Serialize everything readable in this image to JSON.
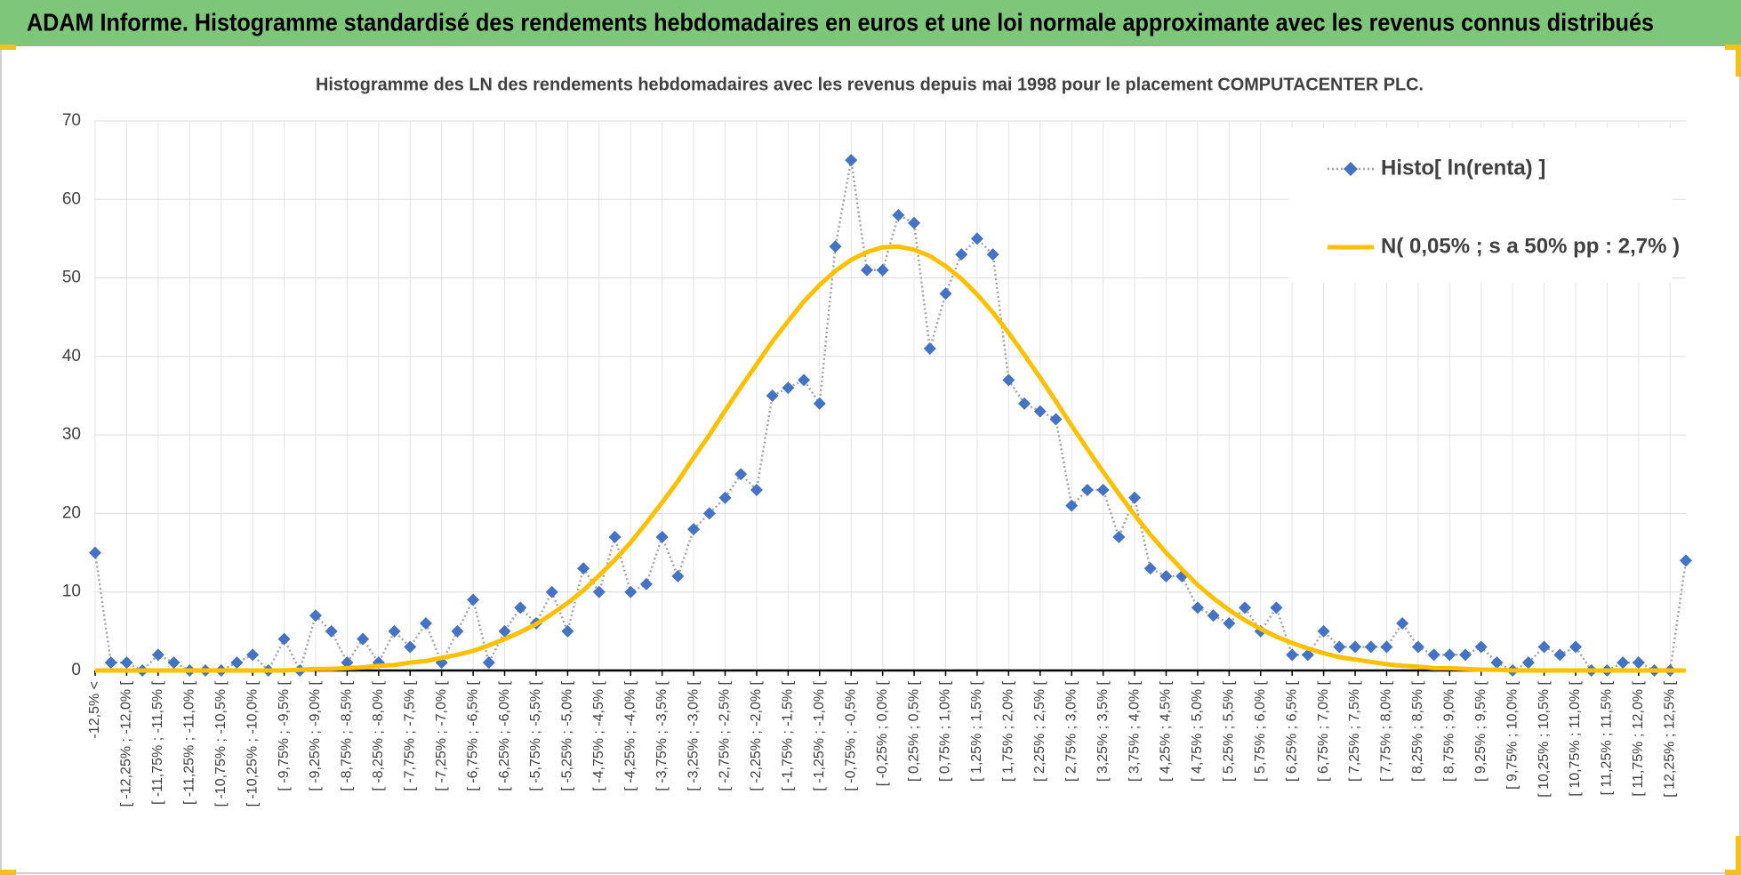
{
  "header": {
    "title": "ADAM Informe. Histogramme standardisé des rendements hebdomadaires en euros et une loi normale approximante avec les revenus connus distribués"
  },
  "chart_data": {
    "type": "line",
    "title": "Histogramme des LN des rendements hebdomadaires avec les revenus depuis mai 1998 pour le placement COMPUTACENTER PLC.",
    "categories": [
      "-12,5% <",
      null,
      "[ -12,25% ; -12,0% [",
      null,
      "[ -11,75% ; -11,5% [",
      null,
      "[ -11,25% ; -11,0% [",
      null,
      "[ -10,75% ; -10,5% [",
      null,
      "[ -10,25% ; -10,0% [",
      null,
      "[ -9,75% ; -9,5% [",
      null,
      "[ -9,25% ; -9,0% [",
      null,
      "[ -8,75% ; -8,5% [",
      null,
      "[ -8,25% ; -8,0% [",
      null,
      "[ -7,75% ; -7,5% [",
      null,
      "[ -7,25% ; -7,0% [",
      null,
      "[ -6,75% ; -6,5% [",
      null,
      "[ -6,25% ; -6,0% [",
      null,
      "[ -5,75% ; -5,5% [",
      null,
      "[ -5,25% ; -5,0% [",
      null,
      "[ -4,75% ; -4,5% [",
      null,
      "[ -4,25% ; -4,0% [",
      null,
      "[ -3,75% ; -3,5% [",
      null,
      "[ -3,25% ; -3,0% [",
      null,
      "[ -2,75% ; -2,5% [",
      null,
      "[ -2,25% ; -2,0% [",
      null,
      "[ -1,75% ; -1,5% [",
      null,
      "[ -1,25% ; -1,0% [",
      null,
      "[ -0,75% ; -0,5% [",
      null,
      "[ -0,25% ; 0,0% [",
      null,
      "[ 0,25% ; 0,5% [",
      null,
      "[ 0,75% ; 1,0% [",
      null,
      "[ 1,25% ; 1,5% [",
      null,
      "[ 1,75% ; 2,0% [",
      null,
      "[ 2,25% ; 2,5% [",
      null,
      "[ 2,75% ; 3,0% [",
      null,
      "[ 3,25% ; 3,5% [",
      null,
      "[ 3,75% ; 4,0% [",
      null,
      "[ 4,25% ; 4,5% [",
      null,
      "[ 4,75% ; 5,0% [",
      null,
      "[ 5,25% ; 5,5% [",
      null,
      "[ 5,75% ; 6,0% [",
      null,
      "[ 6,25% ; 6,5% [",
      null,
      "[ 6,75% ; 7,0% [",
      null,
      "[ 7,25% ; 7,5% [",
      null,
      "[ 7,75% ; 8,0% [",
      null,
      "[ 8,25% ; 8,5% [",
      null,
      "[ 8,75% ; 9,0% [",
      null,
      "[ 9,25% ; 9,5% [",
      null,
      "[ 9,75% ; 10,0% [",
      null,
      "[ 10,25% ; 10,5% [",
      null,
      "[ 10,75% ; 11,0% [",
      null,
      "[ 11,25% ; 11,5% [",
      null,
      "[ 11,75% ; 12,0% [",
      null,
      "[ 12,25% ; 12,5% [",
      null
    ],
    "series": [
      {
        "name": "Histo[ ln(renta) ]",
        "color": "#4472c4",
        "line_color": "#a5a5a5",
        "line_style": "dotted",
        "marker": "diamond",
        "values": [
          15,
          1,
          1,
          0,
          2,
          1,
          0,
          0,
          0,
          1,
          2,
          0,
          4,
          0,
          7,
          5,
          1,
          4,
          1,
          5,
          3,
          6,
          1,
          5,
          9,
          1,
          5,
          8,
          6,
          10,
          5,
          13,
          10,
          17,
          10,
          11,
          17,
          12,
          18,
          20,
          22,
          25,
          23,
          35,
          36,
          37,
          34,
          54,
          65,
          51,
          51,
          58,
          57,
          41,
          48,
          53,
          55,
          53,
          37,
          34,
          33,
          32,
          21,
          23,
          23,
          17,
          22,
          13,
          12,
          12,
          8,
          7,
          6,
          8,
          5,
          8,
          2,
          2,
          5,
          3,
          3,
          3,
          3,
          6,
          3,
          2,
          2,
          2,
          3,
          1,
          0,
          1,
          3,
          2,
          3,
          0,
          0,
          1,
          1,
          0,
          0,
          14
        ]
      },
      {
        "name": "N( 0,05% ; s a 50% pp : 2,7% )",
        "color": "#ffc000",
        "line_color": "#ffc000",
        "line_style": "solid",
        "marker": "none",
        "values": [
          0,
          0,
          0,
          0,
          0,
          0,
          0,
          0,
          0,
          0,
          0,
          0,
          0,
          0.1,
          0.2,
          0.2,
          0.3,
          0.4,
          0.6,
          0.7,
          1.0,
          1.2,
          1.6,
          2.0,
          2.5,
          3.2,
          4.0,
          4.9,
          5.9,
          7.2,
          8.6,
          10.2,
          12.1,
          14.1,
          16.3,
          18.8,
          21.4,
          24.1,
          27.1,
          30.0,
          33.1,
          36.1,
          39.0,
          41.9,
          44.5,
          47.0,
          49.1,
          50.9,
          52.3,
          53.3,
          53.9,
          54.0,
          53.6,
          52.8,
          51.5,
          49.9,
          47.9,
          45.6,
          43.0,
          40.2,
          37.3,
          34.3,
          31.2,
          28.2,
          25.3,
          22.5,
          19.8,
          17.3,
          15.0,
          12.9,
          10.9,
          9.2,
          7.7,
          6.4,
          5.3,
          4.3,
          3.5,
          2.8,
          2.2,
          1.7,
          1.4,
          1.1,
          0.8,
          0.6,
          0.5,
          0.3,
          0.3,
          0.2,
          0.1,
          0.1,
          0,
          0,
          0,
          0,
          0,
          0,
          0,
          0,
          0,
          0,
          0,
          0
        ]
      }
    ],
    "ylim": [
      0,
      70
    ],
    "yticks": [
      0,
      10,
      20,
      30,
      40,
      50,
      60,
      70
    ],
    "grid": true,
    "legend": "top-right"
  }
}
